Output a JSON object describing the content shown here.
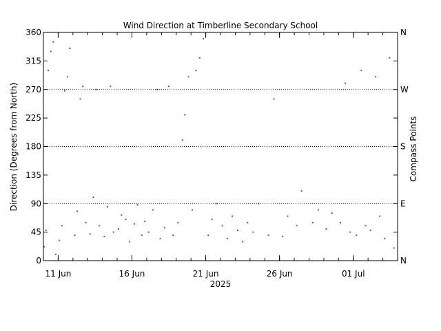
{
  "chart_data": {
    "type": "scatter",
    "title": "Wind Direction at Timberline Secondary School",
    "ylabel": "Direction (Degrees from North)",
    "y2label": "Compass Points",
    "xlabel_sub": "2025",
    "ylim": [
      0,
      360
    ],
    "xlim": [
      "2025-06-10",
      "2025-07-04"
    ],
    "yticks": [
      0,
      45,
      90,
      135,
      180,
      225,
      270,
      315,
      360
    ],
    "xticks": [
      {
        "date": "2025-06-11",
        "label": "11 Jun"
      },
      {
        "date": "2025-06-16",
        "label": "16 Jun"
      },
      {
        "date": "2025-06-21",
        "label": "21 Jun"
      },
      {
        "date": "2025-06-26",
        "label": "26 Jun"
      },
      {
        "date": "2025-07-01",
        "label": "01 Jul"
      }
    ],
    "compass": [
      {
        "deg": 0,
        "label": "N"
      },
      {
        "deg": 90,
        "label": "E"
      },
      {
        "deg": 180,
        "label": "S"
      },
      {
        "deg": 270,
        "label": "W"
      },
      {
        "deg": 360,
        "label": "N"
      }
    ],
    "reference_lines": [
      90,
      180,
      270
    ],
    "grid": false,
    "marker_color": "#8a2be2",
    "series": [
      {
        "values": [
          [
            "2025-06-10 01:00",
            22
          ],
          [
            "2025-06-10 04:00",
            48
          ],
          [
            "2025-06-10 08:00",
            300
          ],
          [
            "2025-06-10 12:00",
            330
          ],
          [
            "2025-06-10 16:00",
            345
          ],
          [
            "2025-06-10 20:00",
            10
          ],
          [
            "2025-06-11 02:00",
            32
          ],
          [
            "2025-06-11 06:00",
            55
          ],
          [
            "2025-06-11 11:00",
            268
          ],
          [
            "2025-06-11 15:00",
            290
          ],
          [
            "2025-06-11 19:00",
            335
          ],
          [
            "2025-06-12 03:00",
            40
          ],
          [
            "2025-06-12 07:00",
            78
          ],
          [
            "2025-06-12 12:00",
            255
          ],
          [
            "2025-06-12 16:00",
            275
          ],
          [
            "2025-06-12 21:00",
            60
          ],
          [
            "2025-06-13 04:00",
            42
          ],
          [
            "2025-06-13 09:00",
            100
          ],
          [
            "2025-06-13 14:00",
            270
          ],
          [
            "2025-06-13 19:00",
            55
          ],
          [
            "2025-06-14 03:00",
            38
          ],
          [
            "2025-06-14 08:00",
            85
          ],
          [
            "2025-06-14 13:00",
            275
          ],
          [
            "2025-06-14 18:00",
            45
          ],
          [
            "2025-06-15 02:00",
            50
          ],
          [
            "2025-06-15 07:00",
            72
          ],
          [
            "2025-06-15 14:00",
            65
          ],
          [
            "2025-06-15 20:00",
            30
          ],
          [
            "2025-06-16 04:00",
            58
          ],
          [
            "2025-06-16 09:00",
            88
          ],
          [
            "2025-06-16 16:00",
            40
          ],
          [
            "2025-06-16 21:00",
            62
          ],
          [
            "2025-06-17 03:00",
            45
          ],
          [
            "2025-06-17 10:00",
            80
          ],
          [
            "2025-06-17 17:00",
            270
          ],
          [
            "2025-06-17 22:00",
            35
          ],
          [
            "2025-06-18 05:00",
            52
          ],
          [
            "2025-06-18 12:00",
            275
          ],
          [
            "2025-06-18 19:00",
            40
          ],
          [
            "2025-06-19 03:00",
            60
          ],
          [
            "2025-06-19 10:00",
            190
          ],
          [
            "2025-06-19 14:00",
            230
          ],
          [
            "2025-06-19 20:00",
            290
          ],
          [
            "2025-06-20 02:00",
            80
          ],
          [
            "2025-06-20 08:00",
            300
          ],
          [
            "2025-06-20 14:00",
            320
          ],
          [
            "2025-06-20 20:00",
            350
          ],
          [
            "2025-06-21 04:00",
            40
          ],
          [
            "2025-06-21 10:00",
            65
          ],
          [
            "2025-06-21 18:00",
            90
          ],
          [
            "2025-06-22 03:00",
            55
          ],
          [
            "2025-06-22 11:00",
            35
          ],
          [
            "2025-06-22 19:00",
            70
          ],
          [
            "2025-06-23 04:00",
            48
          ],
          [
            "2025-06-23 12:00",
            30
          ],
          [
            "2025-06-23 20:00",
            60
          ],
          [
            "2025-06-24 05:00",
            45
          ],
          [
            "2025-06-24 14:00",
            90
          ],
          [
            "2025-06-25 06:00",
            40
          ],
          [
            "2025-06-25 15:00",
            255
          ],
          [
            "2025-06-26 05:00",
            38
          ],
          [
            "2025-06-26 13:00",
            70
          ],
          [
            "2025-06-27 04:00",
            55
          ],
          [
            "2025-06-27 12:00",
            110
          ],
          [
            "2025-06-28 06:00",
            60
          ],
          [
            "2025-06-28 15:00",
            80
          ],
          [
            "2025-06-29 04:00",
            50
          ],
          [
            "2025-06-29 13:00",
            75
          ],
          [
            "2025-06-30 03:00",
            60
          ],
          [
            "2025-06-30 11:00",
            280
          ],
          [
            "2025-06-30 19:00",
            45
          ],
          [
            "2025-07-01 05:00",
            40
          ],
          [
            "2025-07-01 13:00",
            300
          ],
          [
            "2025-07-01 20:00",
            55
          ],
          [
            "2025-07-02 04:00",
            48
          ],
          [
            "2025-07-02 12:00",
            290
          ],
          [
            "2025-07-02 19:00",
            70
          ],
          [
            "2025-07-03 03:00",
            35
          ],
          [
            "2025-07-03 11:00",
            320
          ],
          [
            "2025-07-03 18:00",
            20
          ]
        ]
      }
    ]
  }
}
